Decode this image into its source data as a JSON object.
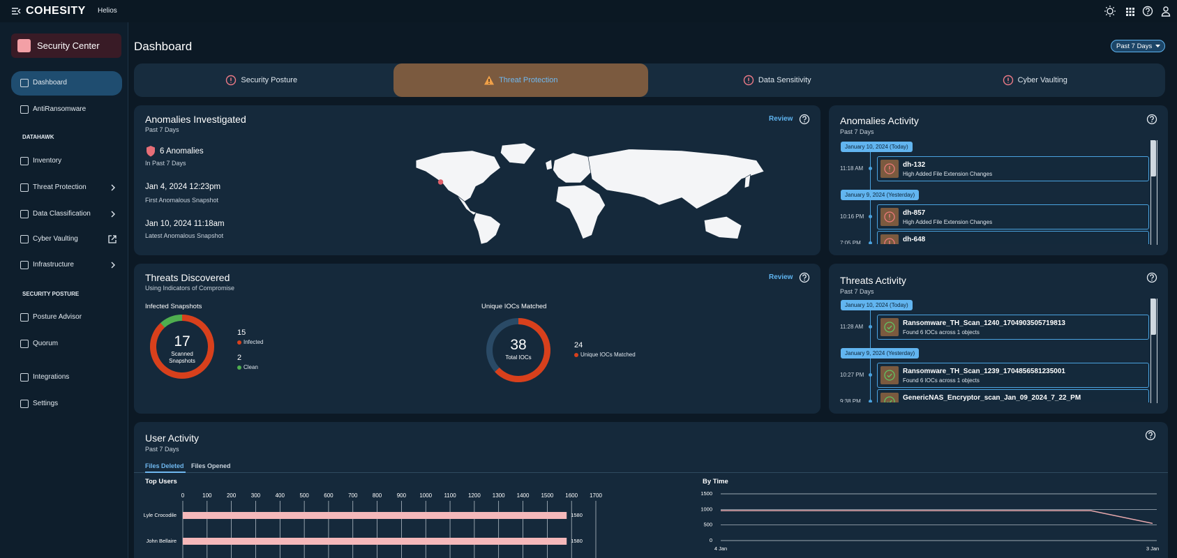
{
  "header": {
    "brand": "COHESITY",
    "product": "Helios"
  },
  "sidebar": {
    "title": "Security Center",
    "top": [
      "Dashboard",
      "AntiRansomware"
    ],
    "sections": [
      {
        "heading": "DATAHAWK",
        "items": [
          "Inventory",
          "Threat Protection",
          "Data Classification",
          "Cyber Vaulting",
          "Infrastructure"
        ]
      },
      {
        "heading": "SECURITY POSTURE",
        "items": [
          "Posture Advisor",
          "Quorum"
        ]
      }
    ],
    "bottom": [
      "Integrations",
      "Settings"
    ]
  },
  "page": {
    "title": "Dashboard",
    "range": "Past 7 Days",
    "tabs": [
      "Security Posture",
      "Threat Protection",
      "Data Sensitivity",
      "Cyber Vaulting"
    ]
  },
  "anomalies": {
    "title": "Anomalies Investigated",
    "subtitle": "Past 7 Days",
    "action": "Review",
    "count": "6 Anomalies",
    "count_note": "In Past 7 Days",
    "first": "Jan 4, 2024 12:23pm",
    "first_label": "First Anomalous Snapshot",
    "latest": "Jan 10, 2024 11:18am",
    "latest_label": "Latest Anomalous Snapshot"
  },
  "anomalies_activity": {
    "title": "Anomalies Activity",
    "subtitle": "Past 7 Days",
    "groups": [
      {
        "date": "January 10, 2024 (Today)",
        "events": [
          {
            "time": "11:18 AM",
            "name": "dh-132",
            "detail": "High Added File Extension Changes"
          }
        ]
      },
      {
        "date": "January 9, 2024 (Yesterday)",
        "events": [
          {
            "time": "10:16 PM",
            "name": "dh-857",
            "detail": "High Added File Extension Changes"
          },
          {
            "time": "7:05 PM",
            "name": "dh-648"
          }
        ]
      }
    ]
  },
  "threats": {
    "title": "Threats Discovered",
    "subtitle": "Using Indicators of Compromise",
    "action": "Review",
    "infected_chart": {
      "type": "pie",
      "title": "Infected Snapshots",
      "center_value": 17,
      "center_label": "Scanned Snapshots",
      "categories": [
        "Infected",
        "Clean"
      ],
      "values": [
        15,
        2
      ],
      "colors": [
        "#d8401c",
        "#4fae4f"
      ]
    },
    "ioc_chart": {
      "type": "pie",
      "title": "Unique IOCs Matched",
      "center_value": 38,
      "center_label": "Total IOCs",
      "categories": [
        "Unique IOCs Matched"
      ],
      "values": [
        24
      ],
      "colors": [
        "#d8401c"
      ]
    }
  },
  "threats_activity": {
    "title": "Threats Activity",
    "subtitle": "Past 7 Days",
    "groups": [
      {
        "date": "January 10, 2024 (Today)",
        "events": [
          {
            "time": "11:28 AM",
            "name": "Ransomware_TH_Scan_1240_1704903505719813",
            "detail": "Found 6 IOCs across 1 objects"
          }
        ]
      },
      {
        "date": "January 9, 2024 (Yesterday)",
        "events": [
          {
            "time": "10:27 PM",
            "name": "Ransomware_TH_Scan_1239_1704856581235001",
            "detail": "Found 6 IOCs across 1 objects"
          },
          {
            "time": "9:38 PM",
            "name": "GenericNAS_Encryptor_scan_Jan_09_2024_7_22_PM"
          }
        ]
      }
    ]
  },
  "user_activity": {
    "title": "User Activity",
    "subtitle": "Past 7 Days",
    "tabs": [
      "Files Deleted",
      "Files Opened"
    ],
    "top_users": {
      "type": "bar",
      "orientation": "horizontal",
      "title": "Top Users",
      "categories": [
        "Lyle Crocodile",
        "John Bellaire"
      ],
      "values": [
        1580,
        1580
      ],
      "color": "#f5b8ba",
      "xlim": [
        0,
        1700
      ],
      "xticks": [
        0,
        100,
        200,
        300,
        400,
        500,
        600,
        700,
        800,
        900,
        1000,
        1100,
        1200,
        1300,
        1400,
        1500,
        1600,
        1700
      ],
      "grid": true
    },
    "by_time": {
      "type": "line",
      "title": "By Time",
      "categories": [
        "4 Jan",
        null,
        null,
        null,
        null,
        null,
        null,
        "3 Jan"
      ],
      "values": [
        960,
        960,
        960,
        960,
        960,
        960,
        960,
        550
      ],
      "color": "#e8a9ad",
      "ylim": [
        0,
        1500
      ],
      "yticks": [
        0,
        500,
        1000,
        1500
      ],
      "grid": true
    }
  }
}
